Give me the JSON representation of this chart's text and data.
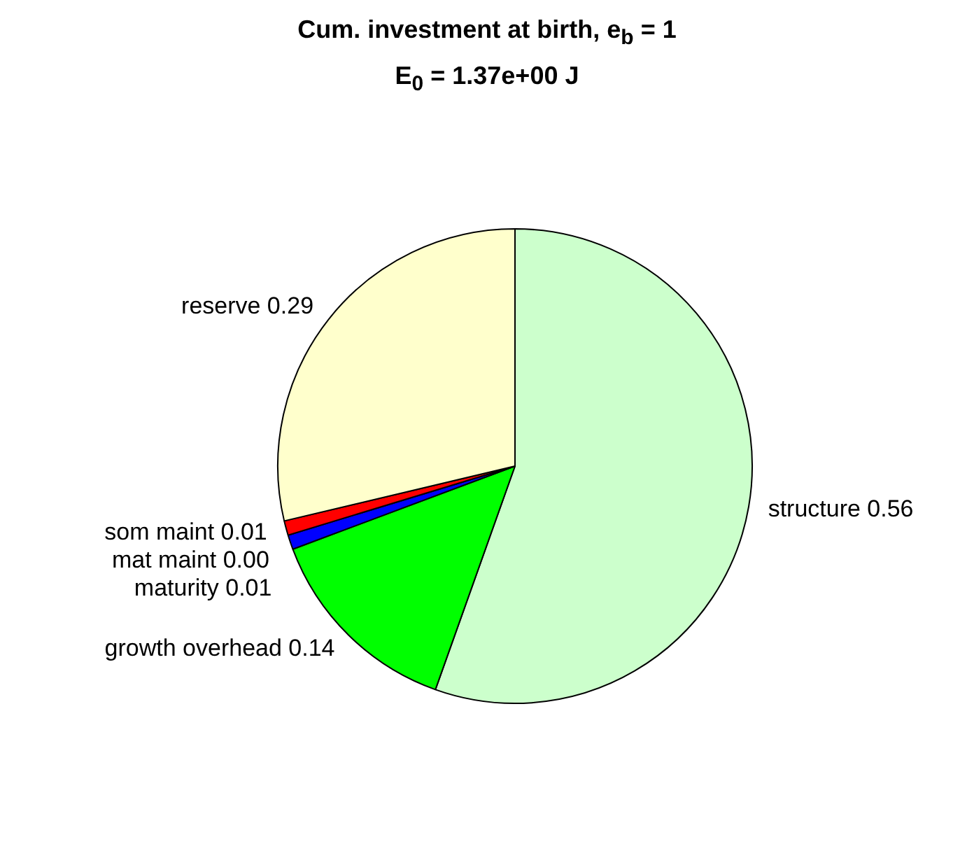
{
  "chart_data": {
    "type": "pie",
    "title": "Cum. investment at birth, e$_{b}$ = 1",
    "subtitle": "E$_{0}$ = 1.37e+00 J",
    "categories": [
      "structure",
      "growth overhead",
      "maturity",
      "mat maint",
      "som maint",
      "reserve"
    ],
    "values": [
      0.56,
      0.14,
      0.01,
      0.0,
      0.01,
      0.29
    ],
    "value_labels": [
      "0.56",
      "0.14",
      "0.01",
      "0.00",
      "0.01",
      "0.29"
    ],
    "colors": [
      "#ccffcc",
      "#00ff00",
      "#0000ff",
      "#000000",
      "#ff0000",
      "#ffffcc"
    ],
    "legend": false
  }
}
